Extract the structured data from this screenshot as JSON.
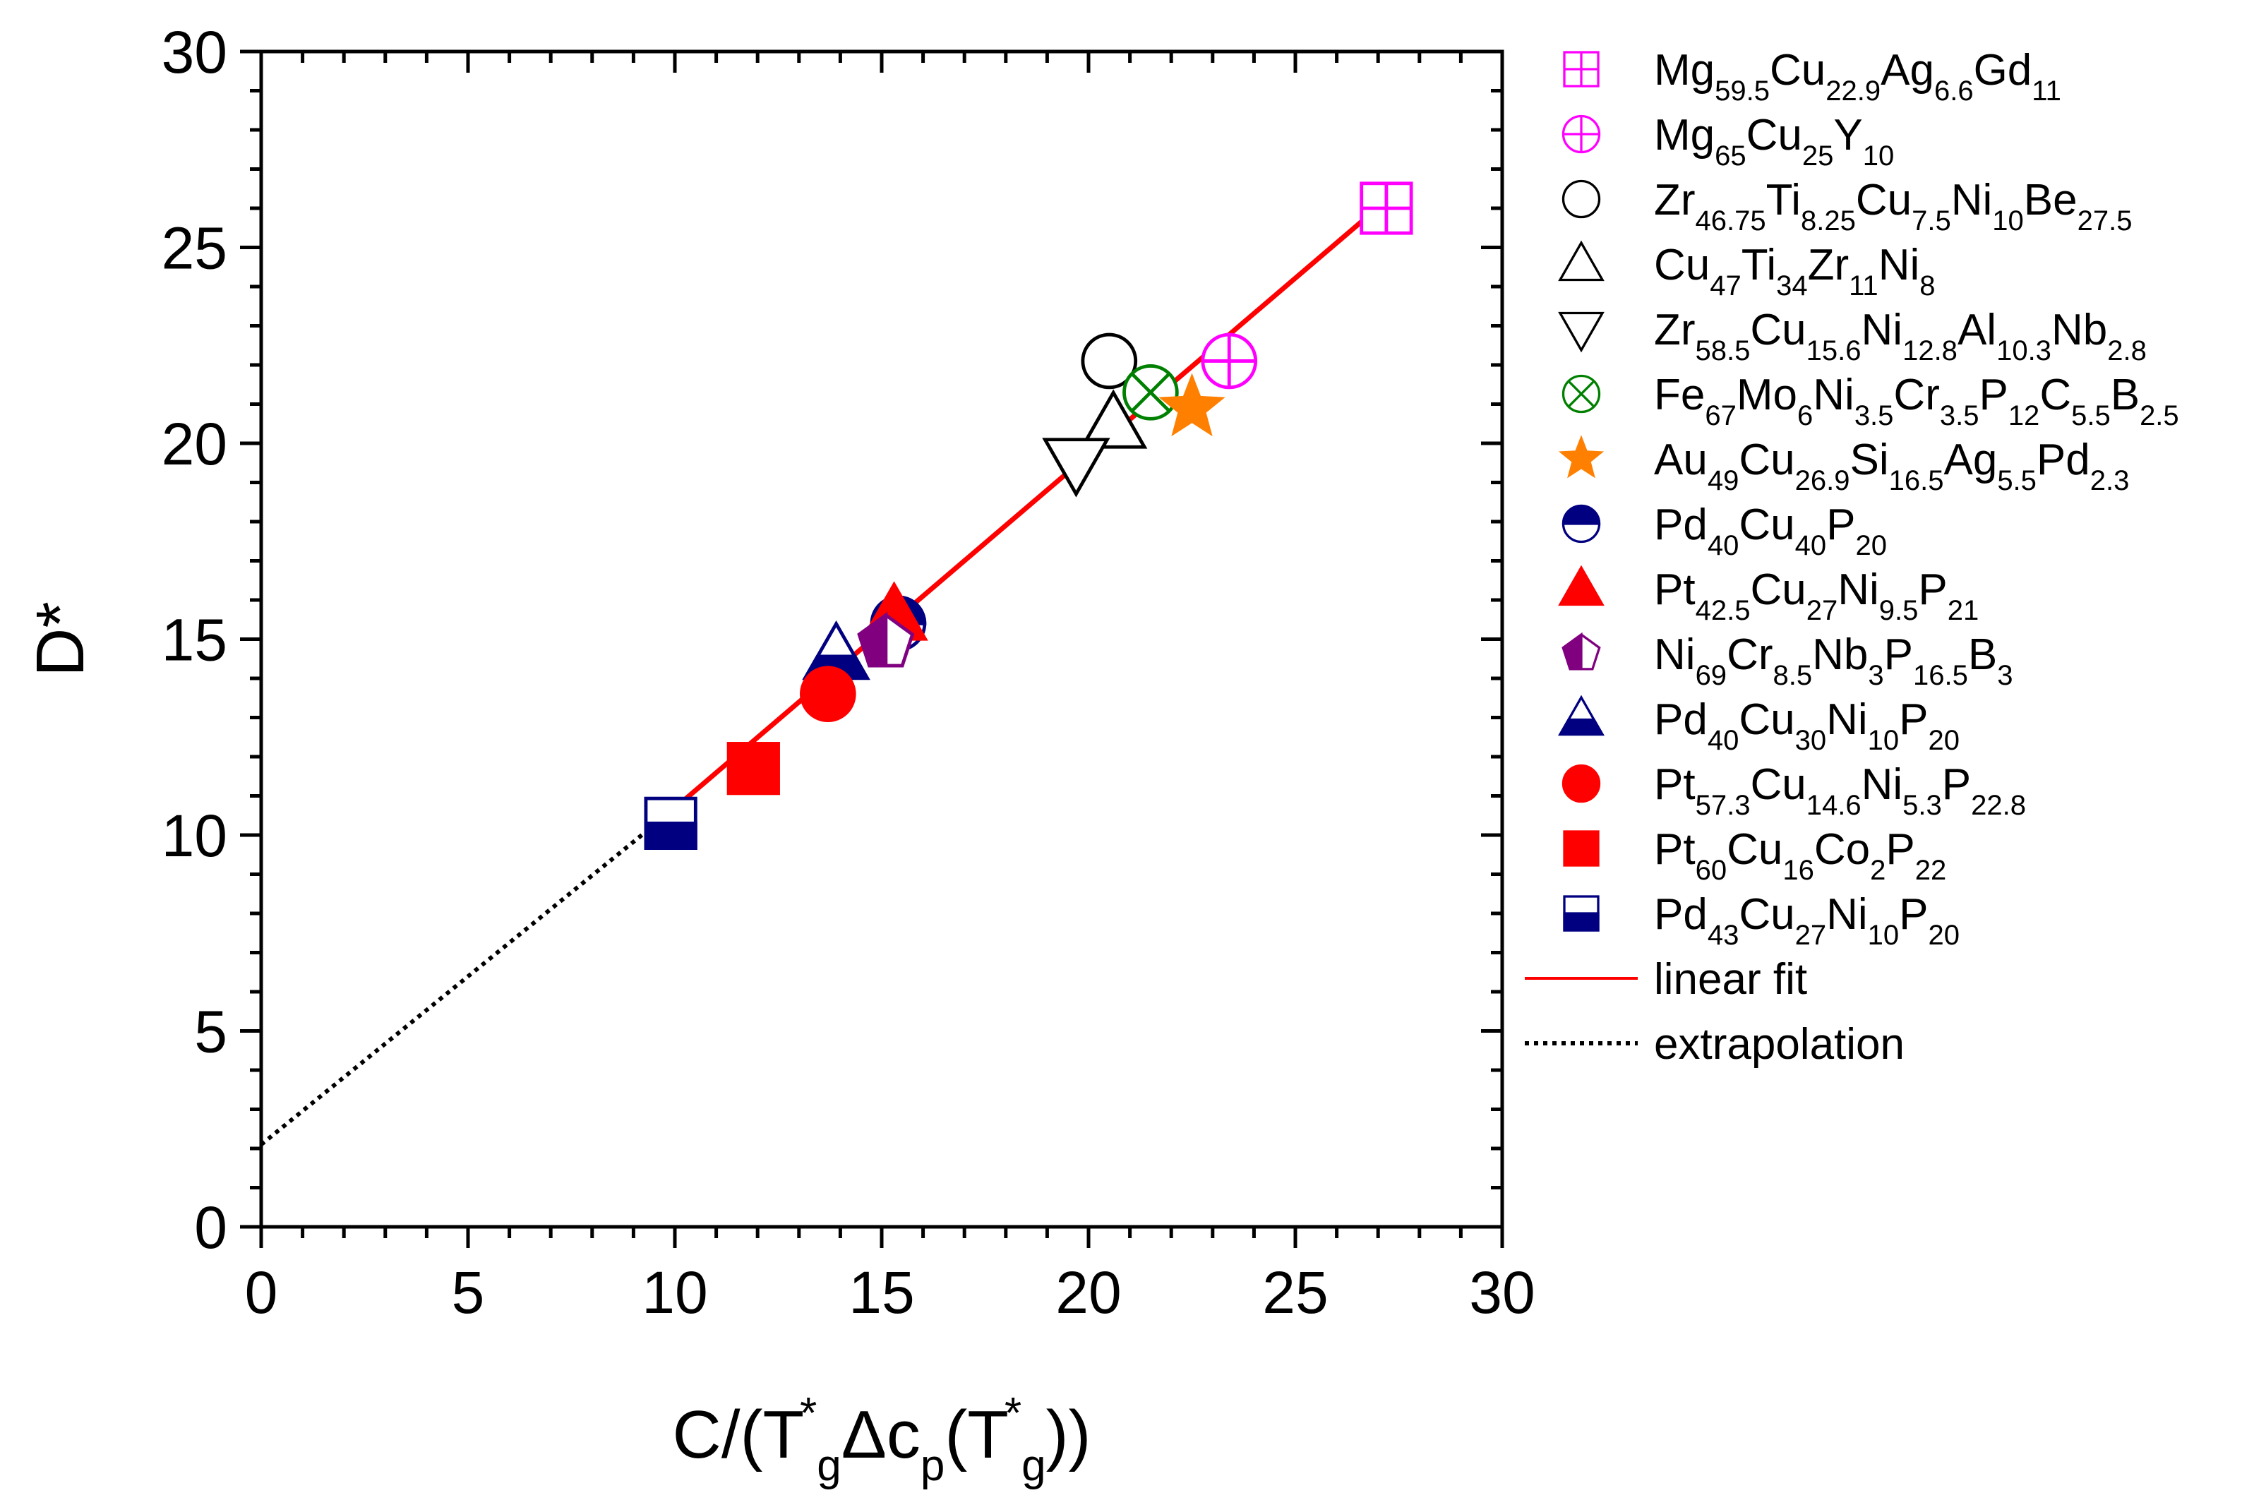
{
  "chart_data": {
    "type": "scatter",
    "title": "",
    "xlabel": {
      "parts": [
        {
          "t": "C/(T",
          "s": "n"
        },
        {
          "t": "*",
          "s": "sup"
        },
        {
          "t": "g",
          "s": "sub"
        },
        {
          "t": "Δc",
          "s": "n"
        },
        {
          "t": "p",
          "s": "sub"
        },
        {
          "t": "(T",
          "s": "n"
        },
        {
          "t": "*",
          "s": "sup"
        },
        {
          "t": "g",
          "s": "sub"
        },
        {
          "t": "))",
          "s": "n"
        }
      ]
    },
    "ylabel": "D*",
    "xlim": [
      0,
      30
    ],
    "ylim": [
      0,
      30
    ],
    "xticks": [
      0,
      5,
      10,
      15,
      20,
      25,
      30
    ],
    "yticks": [
      0,
      5,
      10,
      15,
      20,
      25,
      30
    ],
    "grid": false,
    "legend_position": "right-outside",
    "series": [
      {
        "name": "Mg59.5Cu22.9Ag6.6Gd11",
        "label": [
          [
            "Mg",
            ""
          ],
          [
            "59.5",
            "sub"
          ],
          [
            "Cu",
            ""
          ],
          [
            "22.9",
            "sub"
          ],
          [
            "Ag",
            ""
          ],
          [
            "6.6",
            "sub"
          ],
          [
            "Gd",
            ""
          ],
          [
            "11",
            "sub"
          ]
        ],
        "marker": "square-plus",
        "color": "#ff00ff",
        "x": 27.2,
        "y": 26.0
      },
      {
        "name": "Mg65Cu25Y10",
        "label": [
          [
            "Mg",
            ""
          ],
          [
            "65",
            "sub"
          ],
          [
            "Cu",
            ""
          ],
          [
            "25",
            "sub"
          ],
          [
            "Y",
            ""
          ],
          [
            "10",
            "sub"
          ]
        ],
        "marker": "circle-plus",
        "color": "#ff00ff",
        "x": 23.4,
        "y": 22.1
      },
      {
        "name": "Zr46.75Ti8.25Cu7.5Ni10Be27.5",
        "label": [
          [
            "Zr",
            ""
          ],
          [
            "46.75",
            "sub"
          ],
          [
            "Ti",
            ""
          ],
          [
            "8.25",
            "sub"
          ],
          [
            "Cu",
            ""
          ],
          [
            "7.5",
            "sub"
          ],
          [
            "Ni",
            ""
          ],
          [
            "10",
            "sub"
          ],
          [
            "Be",
            ""
          ],
          [
            "27.5",
            "sub"
          ]
        ],
        "marker": "circle-open",
        "color": "#000000",
        "x": 20.5,
        "y": 22.1
      },
      {
        "name": "Cu47Ti34Zr11Ni8",
        "label": [
          [
            "Cu",
            ""
          ],
          [
            "47",
            "sub"
          ],
          [
            "Ti",
            ""
          ],
          [
            "34",
            "sub"
          ],
          [
            "Zr",
            ""
          ],
          [
            "11",
            "sub"
          ],
          [
            "Ni",
            ""
          ],
          [
            "8",
            "sub"
          ]
        ],
        "marker": "triangle-up-open",
        "color": "#000000",
        "x": 20.6,
        "y": 20.5
      },
      {
        "name": "Zr58.5Cu15.6Ni12.8Al10.3Nb2.8",
        "label": [
          [
            "Zr",
            ""
          ],
          [
            "58.5",
            "sub"
          ],
          [
            "Cu",
            ""
          ],
          [
            "15.6",
            "sub"
          ],
          [
            "Ni",
            ""
          ],
          [
            "12.8",
            "sub"
          ],
          [
            "Al",
            ""
          ],
          [
            "10.3",
            "sub"
          ],
          [
            "Nb",
            ""
          ],
          [
            "2.8",
            "sub"
          ]
        ],
        "marker": "triangle-down-open",
        "color": "#000000",
        "x": 19.7,
        "y": 19.5
      },
      {
        "name": "Fe67Mo6Ni3.5Cr3.5P12C5.5B2.5",
        "label": [
          [
            "Fe",
            ""
          ],
          [
            "67",
            "sub"
          ],
          [
            "Mo",
            ""
          ],
          [
            "6",
            "sub"
          ],
          [
            "Ni",
            ""
          ],
          [
            "3.5",
            "sub"
          ],
          [
            "Cr",
            ""
          ],
          [
            "3.5",
            "sub"
          ],
          [
            "P",
            ""
          ],
          [
            "12",
            "sub"
          ],
          [
            "C",
            ""
          ],
          [
            "5.5",
            "sub"
          ],
          [
            "B",
            ""
          ],
          [
            "2.5",
            "sub"
          ]
        ],
        "marker": "circle-x",
        "color": "#008000",
        "x": 21.5,
        "y": 21.3
      },
      {
        "name": "Au49Cu26.9Si16.5Ag5.5Pd2.3",
        "label": [
          [
            "Au",
            ""
          ],
          [
            "49",
            "sub"
          ],
          [
            "Cu",
            ""
          ],
          [
            "26.9",
            "sub"
          ],
          [
            "Si",
            ""
          ],
          [
            "16.5",
            "sub"
          ],
          [
            "Ag",
            ""
          ],
          [
            "5.5",
            "sub"
          ],
          [
            "Pd",
            ""
          ],
          [
            "2.3",
            "sub"
          ]
        ],
        "marker": "star",
        "color": "#ff8000",
        "x": 22.5,
        "y": 20.9
      },
      {
        "name": "Pd40Cu40P20",
        "label": [
          [
            "Pd",
            ""
          ],
          [
            "40",
            "sub"
          ],
          [
            "Cu",
            ""
          ],
          [
            "40",
            "sub"
          ],
          [
            "P",
            ""
          ],
          [
            "20",
            "sub"
          ]
        ],
        "marker": "circle-half-top",
        "color": "#000080",
        "x": 15.4,
        "y": 15.4
      },
      {
        "name": "Pt42.5Cu27Ni9.5P21",
        "label": [
          [
            "Pt",
            ""
          ],
          [
            "42.5",
            "sub"
          ],
          [
            "Cu",
            ""
          ],
          [
            "27",
            "sub"
          ],
          [
            "Ni",
            ""
          ],
          [
            "9.5",
            "sub"
          ],
          [
            "P",
            ""
          ],
          [
            "21",
            "sub"
          ]
        ],
        "marker": "triangle-up-filled",
        "color": "#ff0000",
        "x": 15.3,
        "y": 15.6
      },
      {
        "name": "Ni69Cr8.5Nb3P16.5B3",
        "label": [
          [
            "Ni",
            ""
          ],
          [
            "69",
            "sub"
          ],
          [
            "Cr",
            ""
          ],
          [
            "8.5",
            "sub"
          ],
          [
            "Nb",
            ""
          ],
          [
            "3",
            "sub"
          ],
          [
            "P",
            ""
          ],
          [
            "16.5",
            "sub"
          ],
          [
            "B",
            ""
          ],
          [
            "3",
            "sub"
          ]
        ],
        "marker": "pentagon-half-left",
        "color": "#800080",
        "x": 15.1,
        "y": 14.9
      },
      {
        "name": "Pd40Cu30Ni10P20",
        "label": [
          [
            "Pd",
            ""
          ],
          [
            "40",
            "sub"
          ],
          [
            "Cu",
            ""
          ],
          [
            "30",
            "sub"
          ],
          [
            "Ni",
            ""
          ],
          [
            "10",
            "sub"
          ],
          [
            "P",
            ""
          ],
          [
            "20",
            "sub"
          ]
        ],
        "marker": "triangle-half-bottom",
        "color": "#000080",
        "x": 13.9,
        "y": 14.6
      },
      {
        "name": "Pt57.3Cu14.6Ni5.3P22.8",
        "label": [
          [
            "Pt",
            ""
          ],
          [
            "57.3",
            "sub"
          ],
          [
            "Cu",
            ""
          ],
          [
            "14.6",
            "sub"
          ],
          [
            "Ni",
            ""
          ],
          [
            "5.3",
            "sub"
          ],
          [
            "P",
            ""
          ],
          [
            "22.8",
            "sub"
          ]
        ],
        "marker": "circle-filled",
        "color": "#ff0000",
        "x": 13.7,
        "y": 13.6
      },
      {
        "name": "Pt60Cu16Co2P22",
        "label": [
          [
            "Pt",
            ""
          ],
          [
            "60",
            "sub"
          ],
          [
            "Cu",
            ""
          ],
          [
            "16",
            "sub"
          ],
          [
            "Co",
            ""
          ],
          [
            "2",
            "sub"
          ],
          [
            "P",
            ""
          ],
          [
            "22",
            "sub"
          ]
        ],
        "marker": "square-filled",
        "color": "#ff0000",
        "x": 11.9,
        "y": 11.7
      },
      {
        "name": "Pd43Cu27Ni10P20",
        "label": [
          [
            "Pd",
            ""
          ],
          [
            "43",
            "sub"
          ],
          [
            "Cu",
            ""
          ],
          [
            "27",
            "sub"
          ],
          [
            "Ni",
            ""
          ],
          [
            "10",
            "sub"
          ],
          [
            "P",
            ""
          ],
          [
            "20",
            "sub"
          ]
        ],
        "marker": "square-half-bottom",
        "color": "#000080",
        "x": 9.9,
        "y": 10.3
      }
    ],
    "lines": [
      {
        "name": "linear fit",
        "style": "solid",
        "color": "#ff0000",
        "x": [
          9.9,
          27.2
        ],
        "y": [
          10.6,
          26.2
        ]
      },
      {
        "name": "extrapolation",
        "style": "dotted",
        "color": "#000000",
        "x": [
          0,
          9.9
        ],
        "y": [
          2.1,
          10.6
        ]
      }
    ]
  }
}
